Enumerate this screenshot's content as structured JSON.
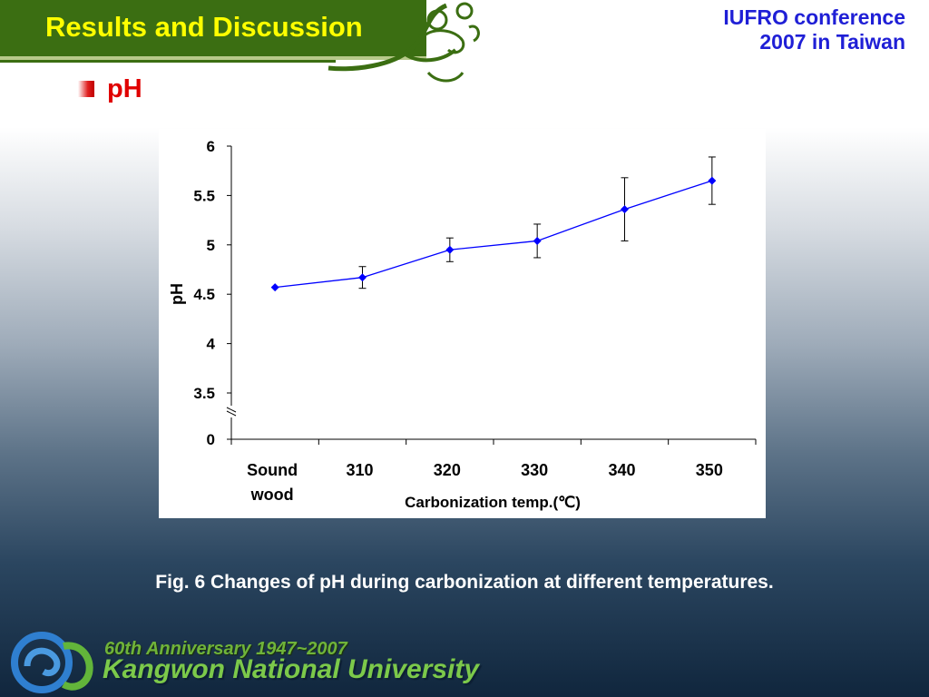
{
  "header": {
    "title": "Results and Discussion",
    "conference_line1": "IUFRO conference",
    "conference_line2": "2007 in Taiwan"
  },
  "section": {
    "title": "pH"
  },
  "caption": "Fig. 6 Changes of pH during carbonization at different temperatures.",
  "footer": {
    "anniversary": "60th Anniversary 1947~2007",
    "university": "Kangwon National University"
  },
  "colors": {
    "header_green": "#3b6e12",
    "title_yellow": "#ffff00",
    "conference_blue": "#1f1fd6",
    "section_red": "#e00000",
    "series_blue": "#0000ff"
  },
  "chart_data": {
    "type": "line",
    "categories": [
      "Sound wood",
      "310",
      "320",
      "330",
      "340",
      "350"
    ],
    "category_lines": [
      [
        "Sound",
        "wood"
      ],
      [
        "310"
      ],
      [
        "320"
      ],
      [
        "330"
      ],
      [
        "340"
      ],
      [
        "350"
      ]
    ],
    "series": [
      {
        "values": [
          4.57,
          4.67,
          4.95,
          5.04,
          5.36,
          5.65
        ],
        "errors": [
          0,
          0.11,
          0.12,
          0.17,
          0.32,
          0.24
        ],
        "color": "#0000ff"
      }
    ],
    "xlabel": "Carbonization temp.(℃)",
    "ylabel": "pH",
    "yticks": [
      "0",
      "3.5",
      "4",
      "4.5",
      "5",
      "5.5",
      "6"
    ],
    "ytick_values": [
      0,
      3.5,
      4,
      4.5,
      5,
      5.5,
      6
    ],
    "ylim": [
      3.5,
      6
    ],
    "axis_break": true,
    "grid": false,
    "legend": "none"
  }
}
